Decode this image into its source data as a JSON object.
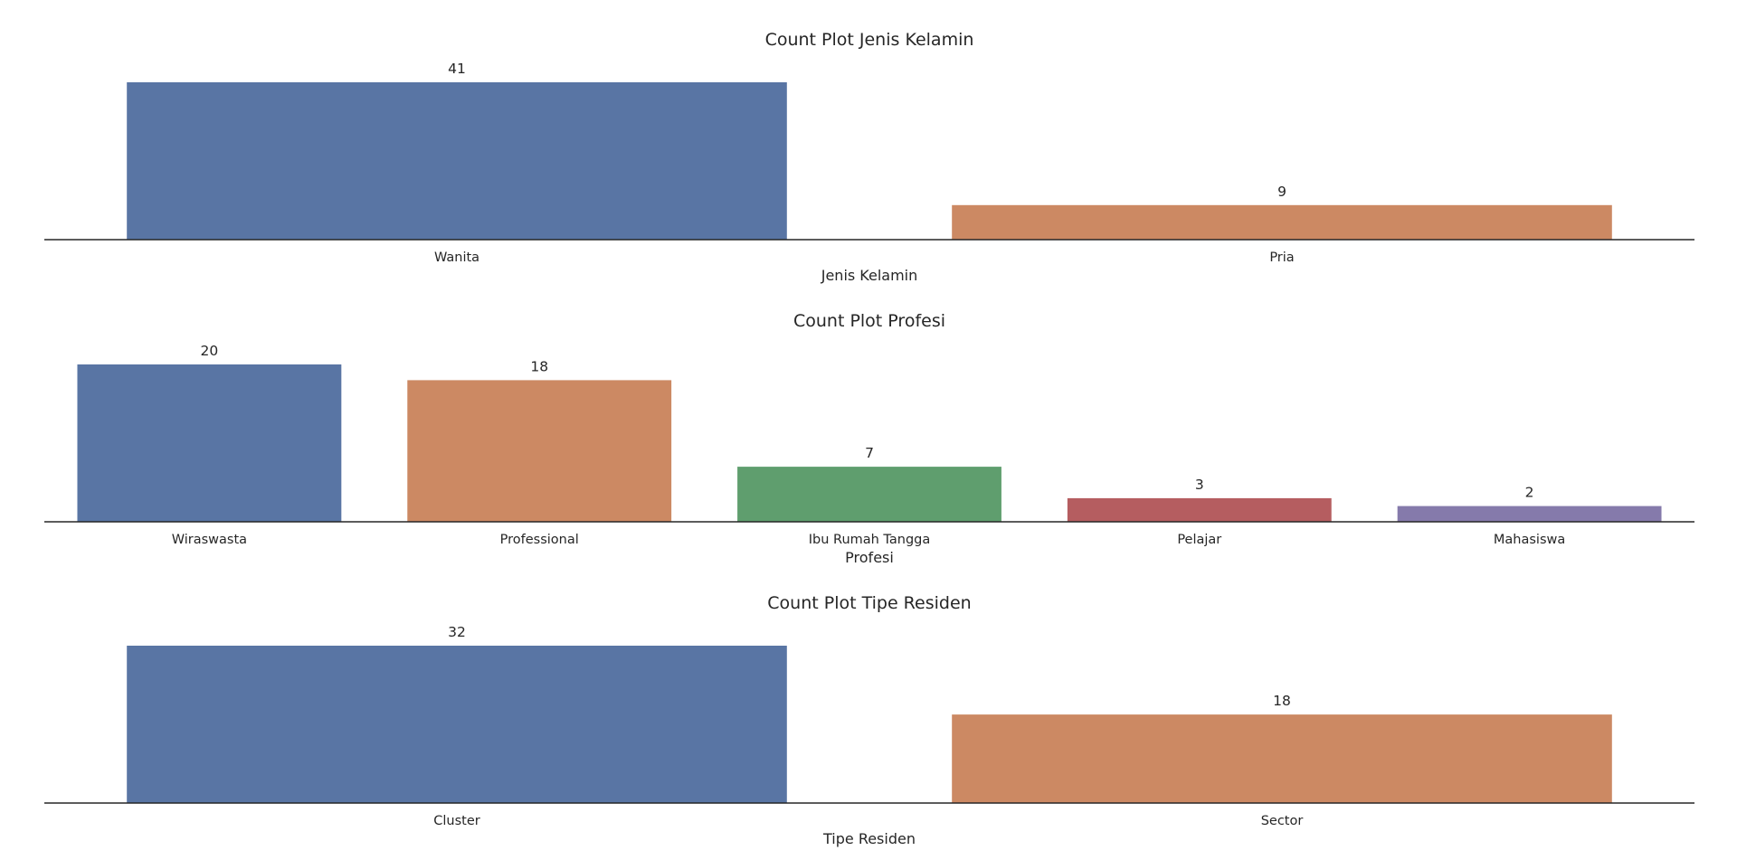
{
  "chart_data": [
    {
      "type": "bar",
      "title": "Count Plot Jenis Kelamin",
      "xlabel": "Jenis Kelamin",
      "ylabel": "",
      "categories": [
        "Wanita",
        "Pria"
      ],
      "values": [
        41,
        9
      ],
      "data_labels": [
        "41",
        "9"
      ],
      "colors": [
        "#5975a4",
        "#cc8963"
      ],
      "ylim": [
        0,
        41
      ],
      "grid": false,
      "legend": false
    },
    {
      "type": "bar",
      "title": "Count Plot Profesi",
      "xlabel": "Profesi",
      "ylabel": "",
      "categories": [
        "Wiraswasta",
        "Professional",
        "Ibu Rumah Tangga",
        "Pelajar",
        "Mahasiswa"
      ],
      "values": [
        20,
        18,
        7,
        3,
        2
      ],
      "data_labels": [
        "20",
        "18",
        "7",
        "3",
        "2"
      ],
      "colors": [
        "#5975a4",
        "#cc8963",
        "#5f9e6e",
        "#b55d60",
        "#857aab"
      ],
      "ylim": [
        0,
        20
      ],
      "grid": false,
      "legend": false
    },
    {
      "type": "bar",
      "title": "Count Plot Tipe Residen",
      "xlabel": "Tipe Residen",
      "ylabel": "",
      "categories": [
        "Cluster",
        "Sector"
      ],
      "values": [
        32,
        18
      ],
      "data_labels": [
        "32",
        "18"
      ],
      "colors": [
        "#5975a4",
        "#cc8963"
      ],
      "ylim": [
        0,
        32
      ],
      "grid": false,
      "legend": false
    }
  ]
}
